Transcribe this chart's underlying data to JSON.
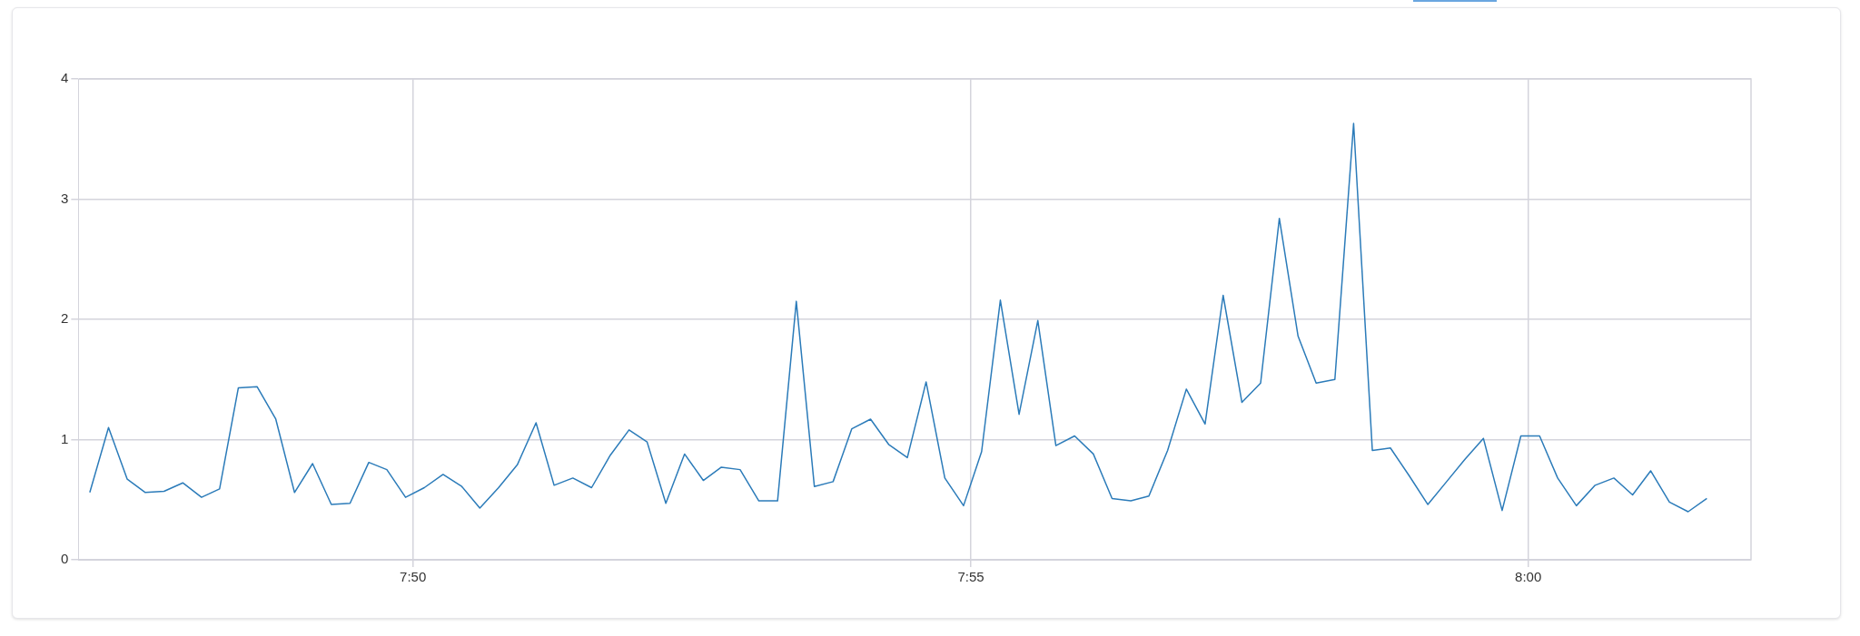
{
  "chart_data": {
    "type": "line",
    "x": [
      7.785,
      7.7878,
      7.7906,
      7.7933,
      7.7961,
      7.7989,
      7.8017,
      7.8044,
      7.8072,
      7.81,
      7.8128,
      7.8156,
      7.8183,
      7.8211,
      7.8239,
      7.8267,
      7.8294,
      7.8322,
      7.835,
      7.8378,
      7.8406,
      7.8433,
      7.8461,
      7.8489,
      7.8517,
      7.8544,
      7.8572,
      7.86,
      7.8628,
      7.8656,
      7.8683,
      7.8711,
      7.8739,
      7.8767,
      7.8794,
      7.8822,
      7.885,
      7.8878,
      7.8906,
      7.8933,
      7.8961,
      7.8989,
      7.9017,
      7.9044,
      7.9072,
      7.91,
      7.9128,
      7.9156,
      7.9183,
      7.9211,
      7.9239,
      7.9267,
      7.9294,
      7.9322,
      7.935,
      7.9378,
      7.9406,
      7.9433,
      7.9461,
      7.9489,
      7.9517,
      7.9544,
      7.9572,
      7.96,
      7.9628,
      7.9656,
      7.9683,
      7.9711,
      7.9739,
      7.9767,
      7.9794,
      7.9822,
      7.985,
      7.9878,
      7.9906,
      7.9933,
      7.9961,
      7.9989,
      8.0017,
      8.0044,
      8.0072,
      8.01,
      8.0128,
      8.0156,
      8.0183,
      8.0211,
      8.0239,
      8.0267
    ],
    "series": [
      {
        "color": "#2b7bb9",
        "values": [
          0.56,
          1.1,
          0.67,
          0.56,
          0.57,
          0.64,
          0.52,
          0.59,
          1.43,
          1.44,
          1.17,
          0.56,
          0.8,
          0.46,
          0.47,
          0.81,
          0.75,
          0.52,
          0.6,
          0.71,
          0.61,
          0.43,
          0.6,
          0.79,
          1.14,
          0.62,
          0.68,
          0.6,
          0.87,
          1.08,
          0.98,
          0.47,
          0.88,
          0.66,
          0.77,
          0.75,
          0.49,
          0.49,
          2.15,
          0.61,
          0.65,
          1.09,
          1.17,
          0.96,
          0.85,
          1.48,
          0.68,
          0.45,
          0.9,
          2.16,
          1.21,
          1.99,
          0.95,
          1.03,
          0.88,
          0.51,
          0.49,
          0.53,
          0.91,
          1.42,
          1.13,
          2.2,
          1.31,
          1.47,
          2.84,
          1.86,
          1.47,
          1.5,
          3.63,
          0.91,
          0.93,
          0.7,
          0.46,
          0.65,
          0.84,
          1.01,
          0.41,
          1.03,
          1.03,
          0.68,
          0.45,
          0.62,
          0.68,
          0.54,
          0.74,
          0.48,
          0.4,
          0.51
        ]
      }
    ],
    "xlim": [
      7.7833,
      8.0333
    ],
    "xticks": [
      {
        "value": 7.8333,
        "label": "7:50"
      },
      {
        "value": 7.9167,
        "label": "7:55"
      },
      {
        "value": 8.0,
        "label": "8:00"
      }
    ],
    "ylim": [
      0,
      4
    ],
    "yticks": [
      0,
      1,
      2,
      3,
      4
    ],
    "grid": true,
    "marker": "none",
    "line_style": "solid"
  }
}
